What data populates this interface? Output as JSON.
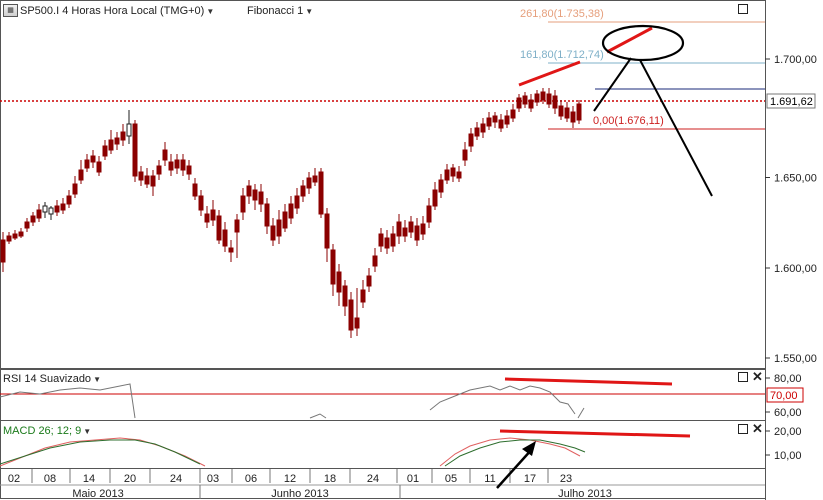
{
  "header": {
    "symbol_title": "SP500.I 4 Horas Hora Local (TMG+0)",
    "fib_label": "Fibonacci 1"
  },
  "colors": {
    "bull": "#1d1d1d",
    "bear": "#8b0000",
    "fib_261": "#e69f7c",
    "fib_161": "#7fb0c8",
    "fib_0": "#cc1f1f",
    "resistance": "#cc0000",
    "annotation_red": "#e01616",
    "annotation_black": "#000000"
  },
  "price_axis": {
    "ticks": [
      "1.700,00",
      "1.650,00",
      "1.600,00",
      "1.550,00"
    ],
    "current_price": "1.691,62"
  },
  "fibonacci": [
    {
      "label": "261,80(1.735,38)",
      "price": 1735.38
    },
    {
      "label": "161,80(1.712,74)",
      "price": 1712.74
    },
    {
      "label": "0,00(1.676,11)",
      "price": 1676.11
    }
  ],
  "rsi": {
    "label": "RSI 14 Suavizado",
    "ticks": [
      "80,00",
      "60,00"
    ],
    "level_label": "70,00"
  },
  "macd": {
    "label": "MACD 26; 12; 9",
    "ticks": [
      "20,00",
      "10,00"
    ]
  },
  "time_axis": {
    "days": [
      "02",
      "08",
      "14",
      "20",
      "24",
      "03",
      "06",
      "12",
      "18",
      "24",
      "01",
      "05",
      "11",
      "17",
      "23"
    ],
    "months": [
      "Maio 2013",
      "Junho 2013",
      "Julho 2013"
    ]
  }
}
